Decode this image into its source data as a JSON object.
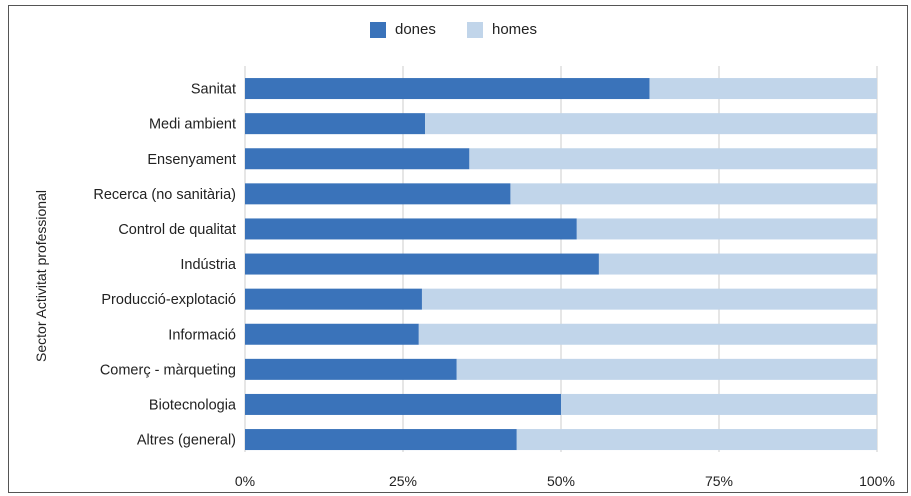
{
  "chart_data": {
    "type": "bar",
    "orientation": "horizontal",
    "stacked": "100%",
    "ylabel": "Sector Activitat professional",
    "xlabel": "",
    "xlim": [
      0,
      100
    ],
    "x_ticks": [
      "0%",
      "25%",
      "50%",
      "75%",
      "100%"
    ],
    "legend_position": "top-center",
    "grid": "vertical",
    "categories": [
      "Sanitat",
      "Medi ambient",
      "Ensenyament",
      "Recerca (no sanitària)",
      "Control de qualitat",
      "Indústria",
      "Producció-explotació",
      "Informació",
      "Comerç - màrqueting",
      "Biotecnologia",
      "Altres (general)"
    ],
    "series": [
      {
        "name": "dones",
        "color": "#3a73ba",
        "values": [
          64,
          28.5,
          35.5,
          42,
          52.5,
          56,
          28,
          27.5,
          33.5,
          50,
          43
        ]
      },
      {
        "name": "homes",
        "color": "#c1d5ea",
        "values": [
          36,
          71.5,
          64.5,
          58,
          47.5,
          44,
          72,
          72.5,
          66.5,
          50,
          57
        ]
      }
    ]
  }
}
